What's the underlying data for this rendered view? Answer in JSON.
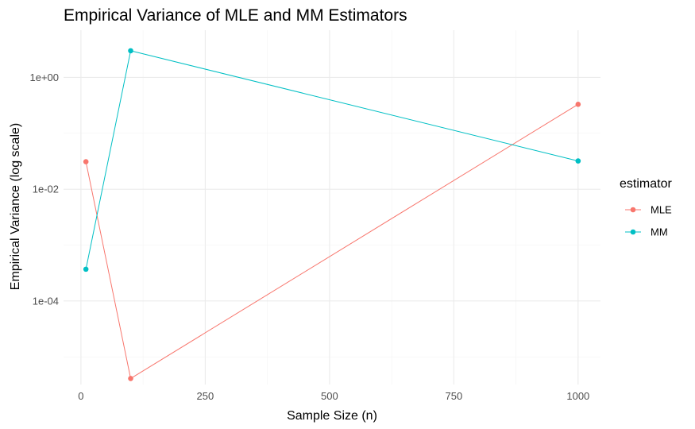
{
  "chart_data": {
    "type": "line",
    "title": "Empirical Variance of MLE and MM Estimators",
    "xlabel": "Sample Size (n)",
    "ylabel": "Empirical Variance (log scale)",
    "x": [
      10,
      100,
      1000
    ],
    "xlim": [
      -35,
      1045
    ],
    "x_ticks": [
      0,
      250,
      500,
      750,
      1000
    ],
    "x_tick_labels": [
      "0",
      "250",
      "500",
      "750",
      "1000"
    ],
    "y_scale": "log10",
    "ylim": [
      3.2e-06,
      7.0
    ],
    "y_ticks": [
      0.0001,
      0.01,
      1
    ],
    "y_tick_labels": [
      "1e-04",
      "1e-02",
      "1e+00"
    ],
    "grid": true,
    "legend": {
      "title": "estimator",
      "placement": "right"
    },
    "series": [
      {
        "name": "MLE",
        "color": "#F8766D",
        "values": [
          0.031,
          4.1e-06,
          0.33
        ]
      },
      {
        "name": "MM",
        "color": "#00BFC4",
        "values": [
          0.00037,
          3.0,
          0.032
        ]
      }
    ]
  }
}
